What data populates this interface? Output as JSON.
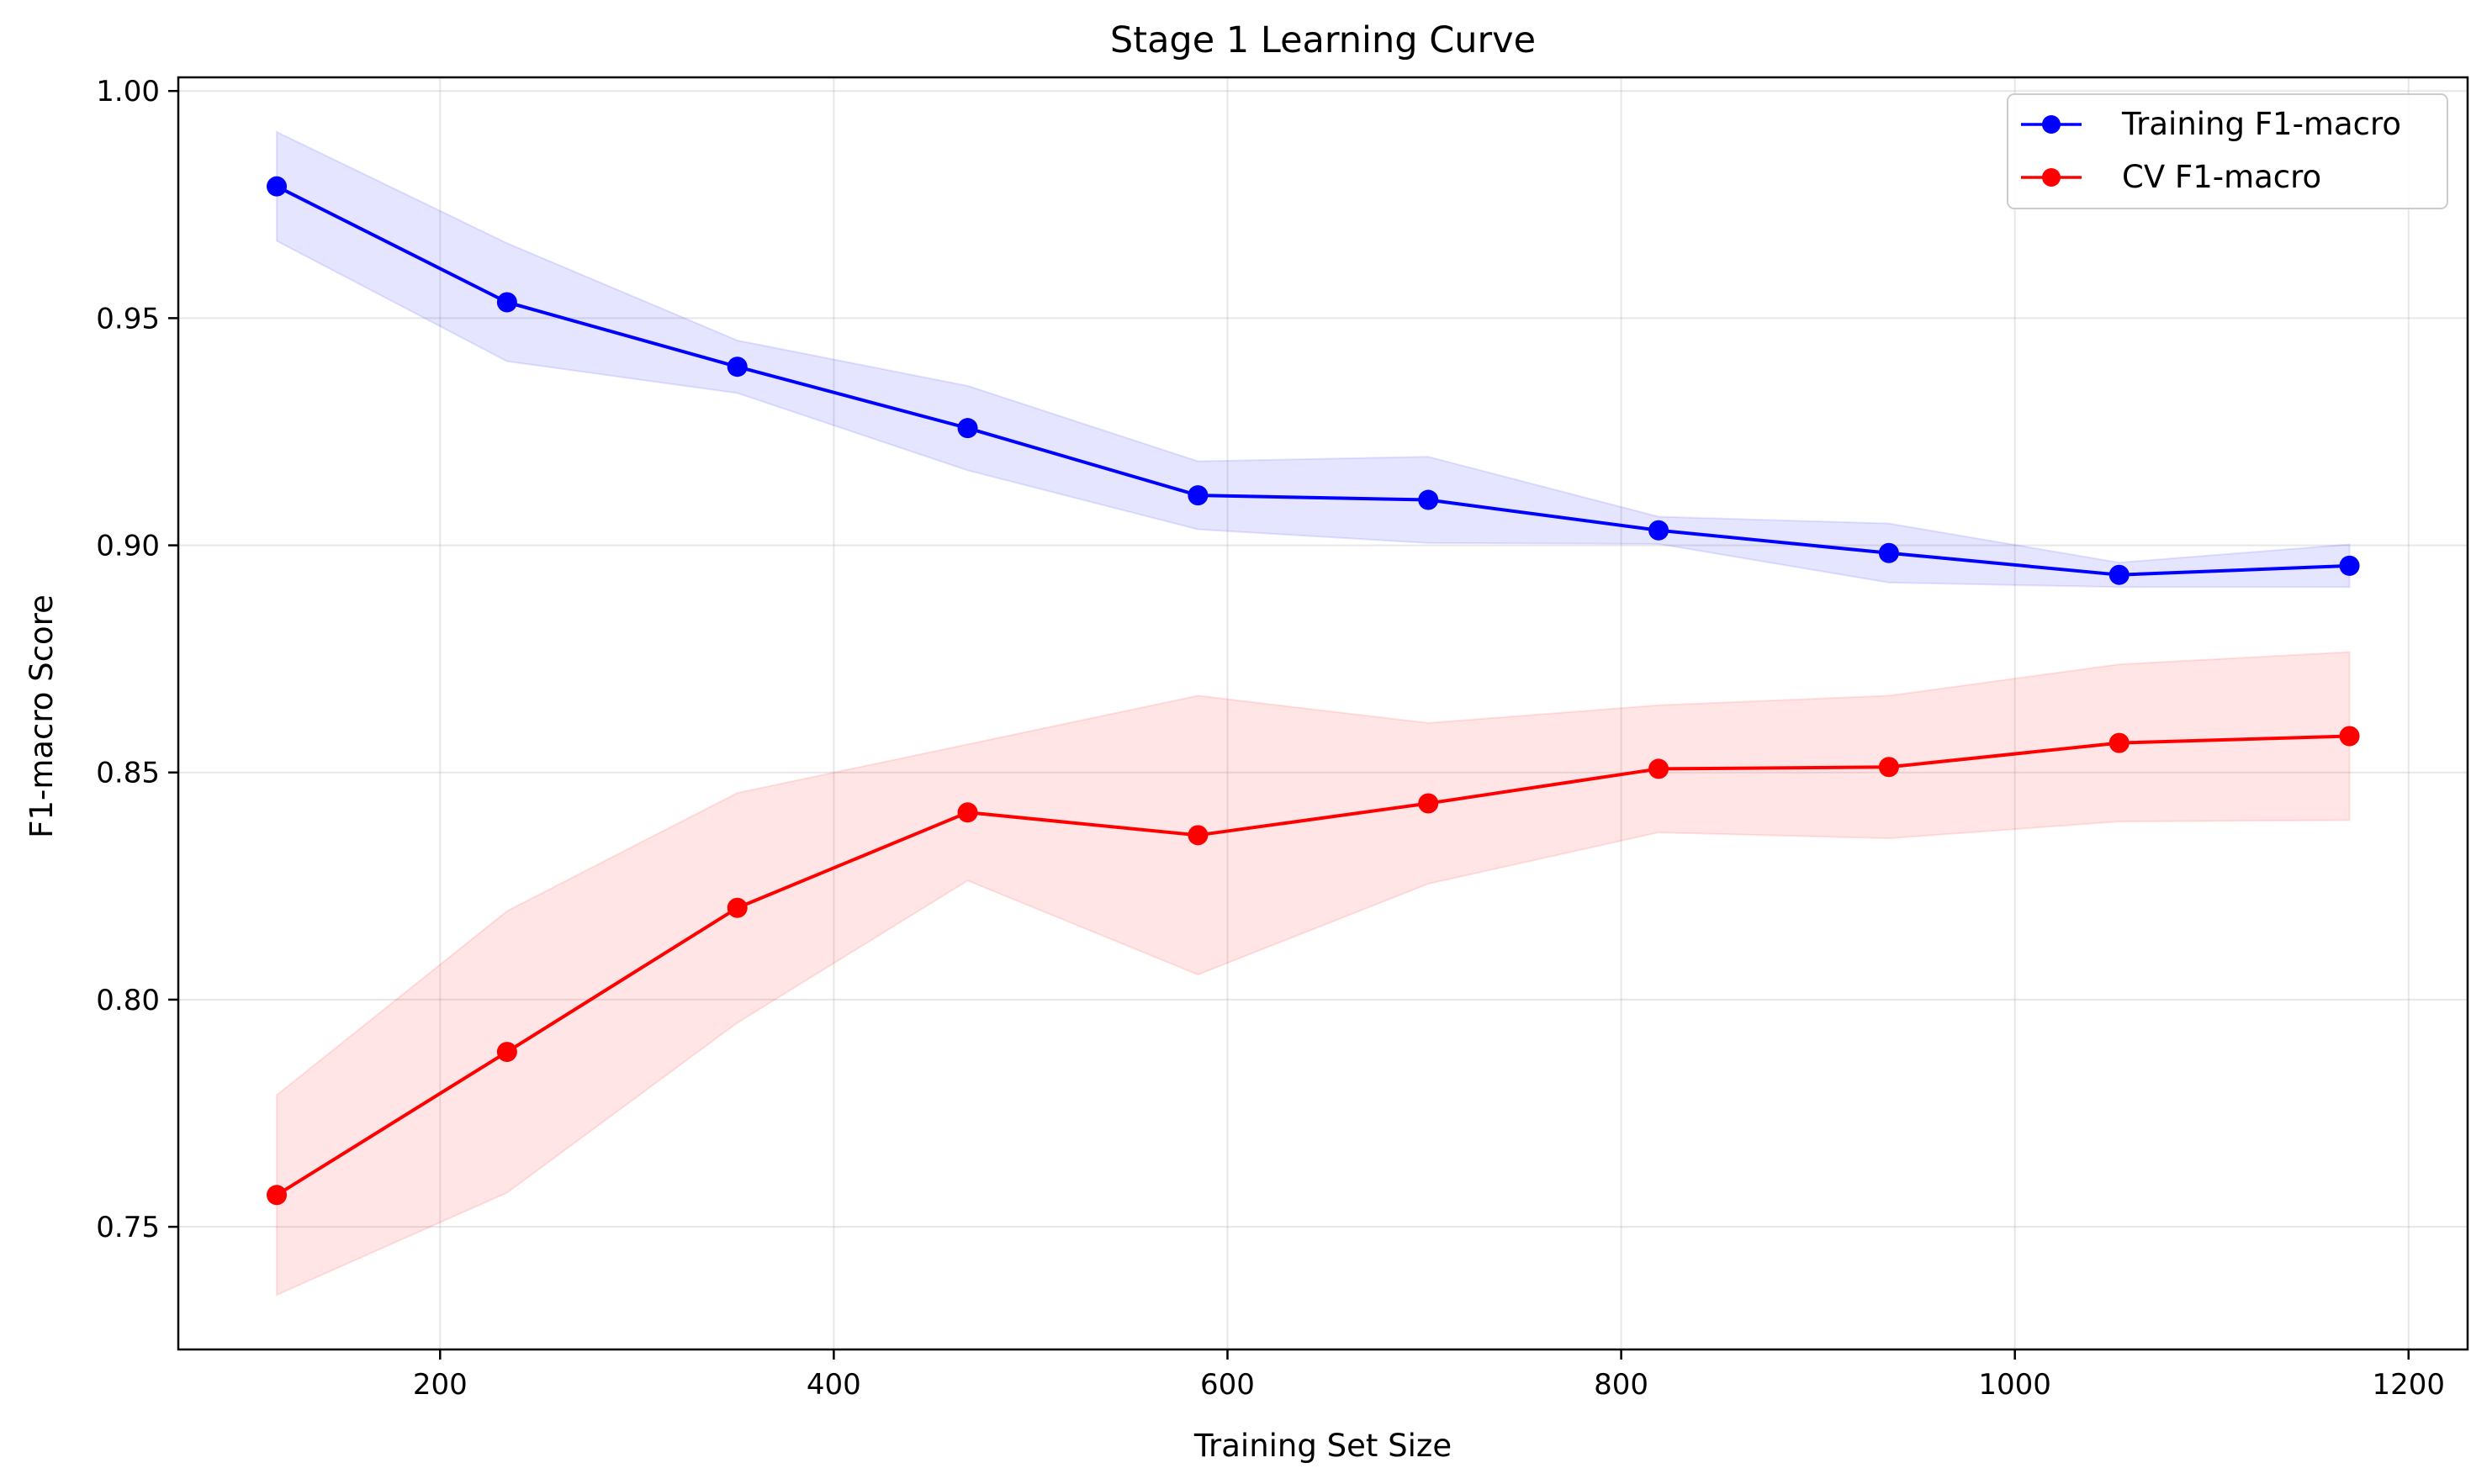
{
  "chart_data": {
    "type": "line",
    "title": "Stage 1 Learning Curve",
    "xlabel": "Training Set Size",
    "ylabel": "F1-macro Score",
    "xlim": [
      67,
      1230
    ],
    "ylim": [
      0.723,
      1.003
    ],
    "xticks": [
      200,
      400,
      600,
      800,
      1000,
      1200
    ],
    "yticks": [
      0.75,
      0.8,
      0.85,
      0.9,
      0.95,
      1.0
    ],
    "grid": true,
    "legend_position": "top-right",
    "x": [
      117,
      234,
      351,
      468,
      585,
      702,
      819,
      936,
      1053,
      1170
    ],
    "series": [
      {
        "name": "Training F1-macro",
        "color": "#0000ff",
        "band_color": "#0000ff",
        "values": [
          0.979,
          0.9535,
          0.9393,
          0.9258,
          0.911,
          0.91,
          0.9033,
          0.8983,
          0.8935,
          0.8955
        ],
        "lower": [
          0.967,
          0.9405,
          0.9335,
          0.9165,
          0.9035,
          0.9005,
          0.9003,
          0.8918,
          0.8908,
          0.8908
        ],
        "upper": [
          0.991,
          0.9665,
          0.9451,
          0.9351,
          0.9185,
          0.9195,
          0.9063,
          0.9048,
          0.8962,
          0.9002
        ]
      },
      {
        "name": "CV F1-macro",
        "color": "#ff0000",
        "band_color": "#ff0000",
        "values": [
          0.757,
          0.7885,
          0.8202,
          0.8412,
          0.8362,
          0.8432,
          0.8508,
          0.8512,
          0.8565,
          0.858
        ],
        "lower": [
          0.735,
          0.7575,
          0.7949,
          0.8262,
          0.8055,
          0.8255,
          0.8368,
          0.8355,
          0.8392,
          0.8395
        ],
        "upper": [
          0.779,
          0.8195,
          0.8455,
          0.8562,
          0.8669,
          0.8609,
          0.8648,
          0.8669,
          0.8738,
          0.8765
        ]
      }
    ]
  }
}
